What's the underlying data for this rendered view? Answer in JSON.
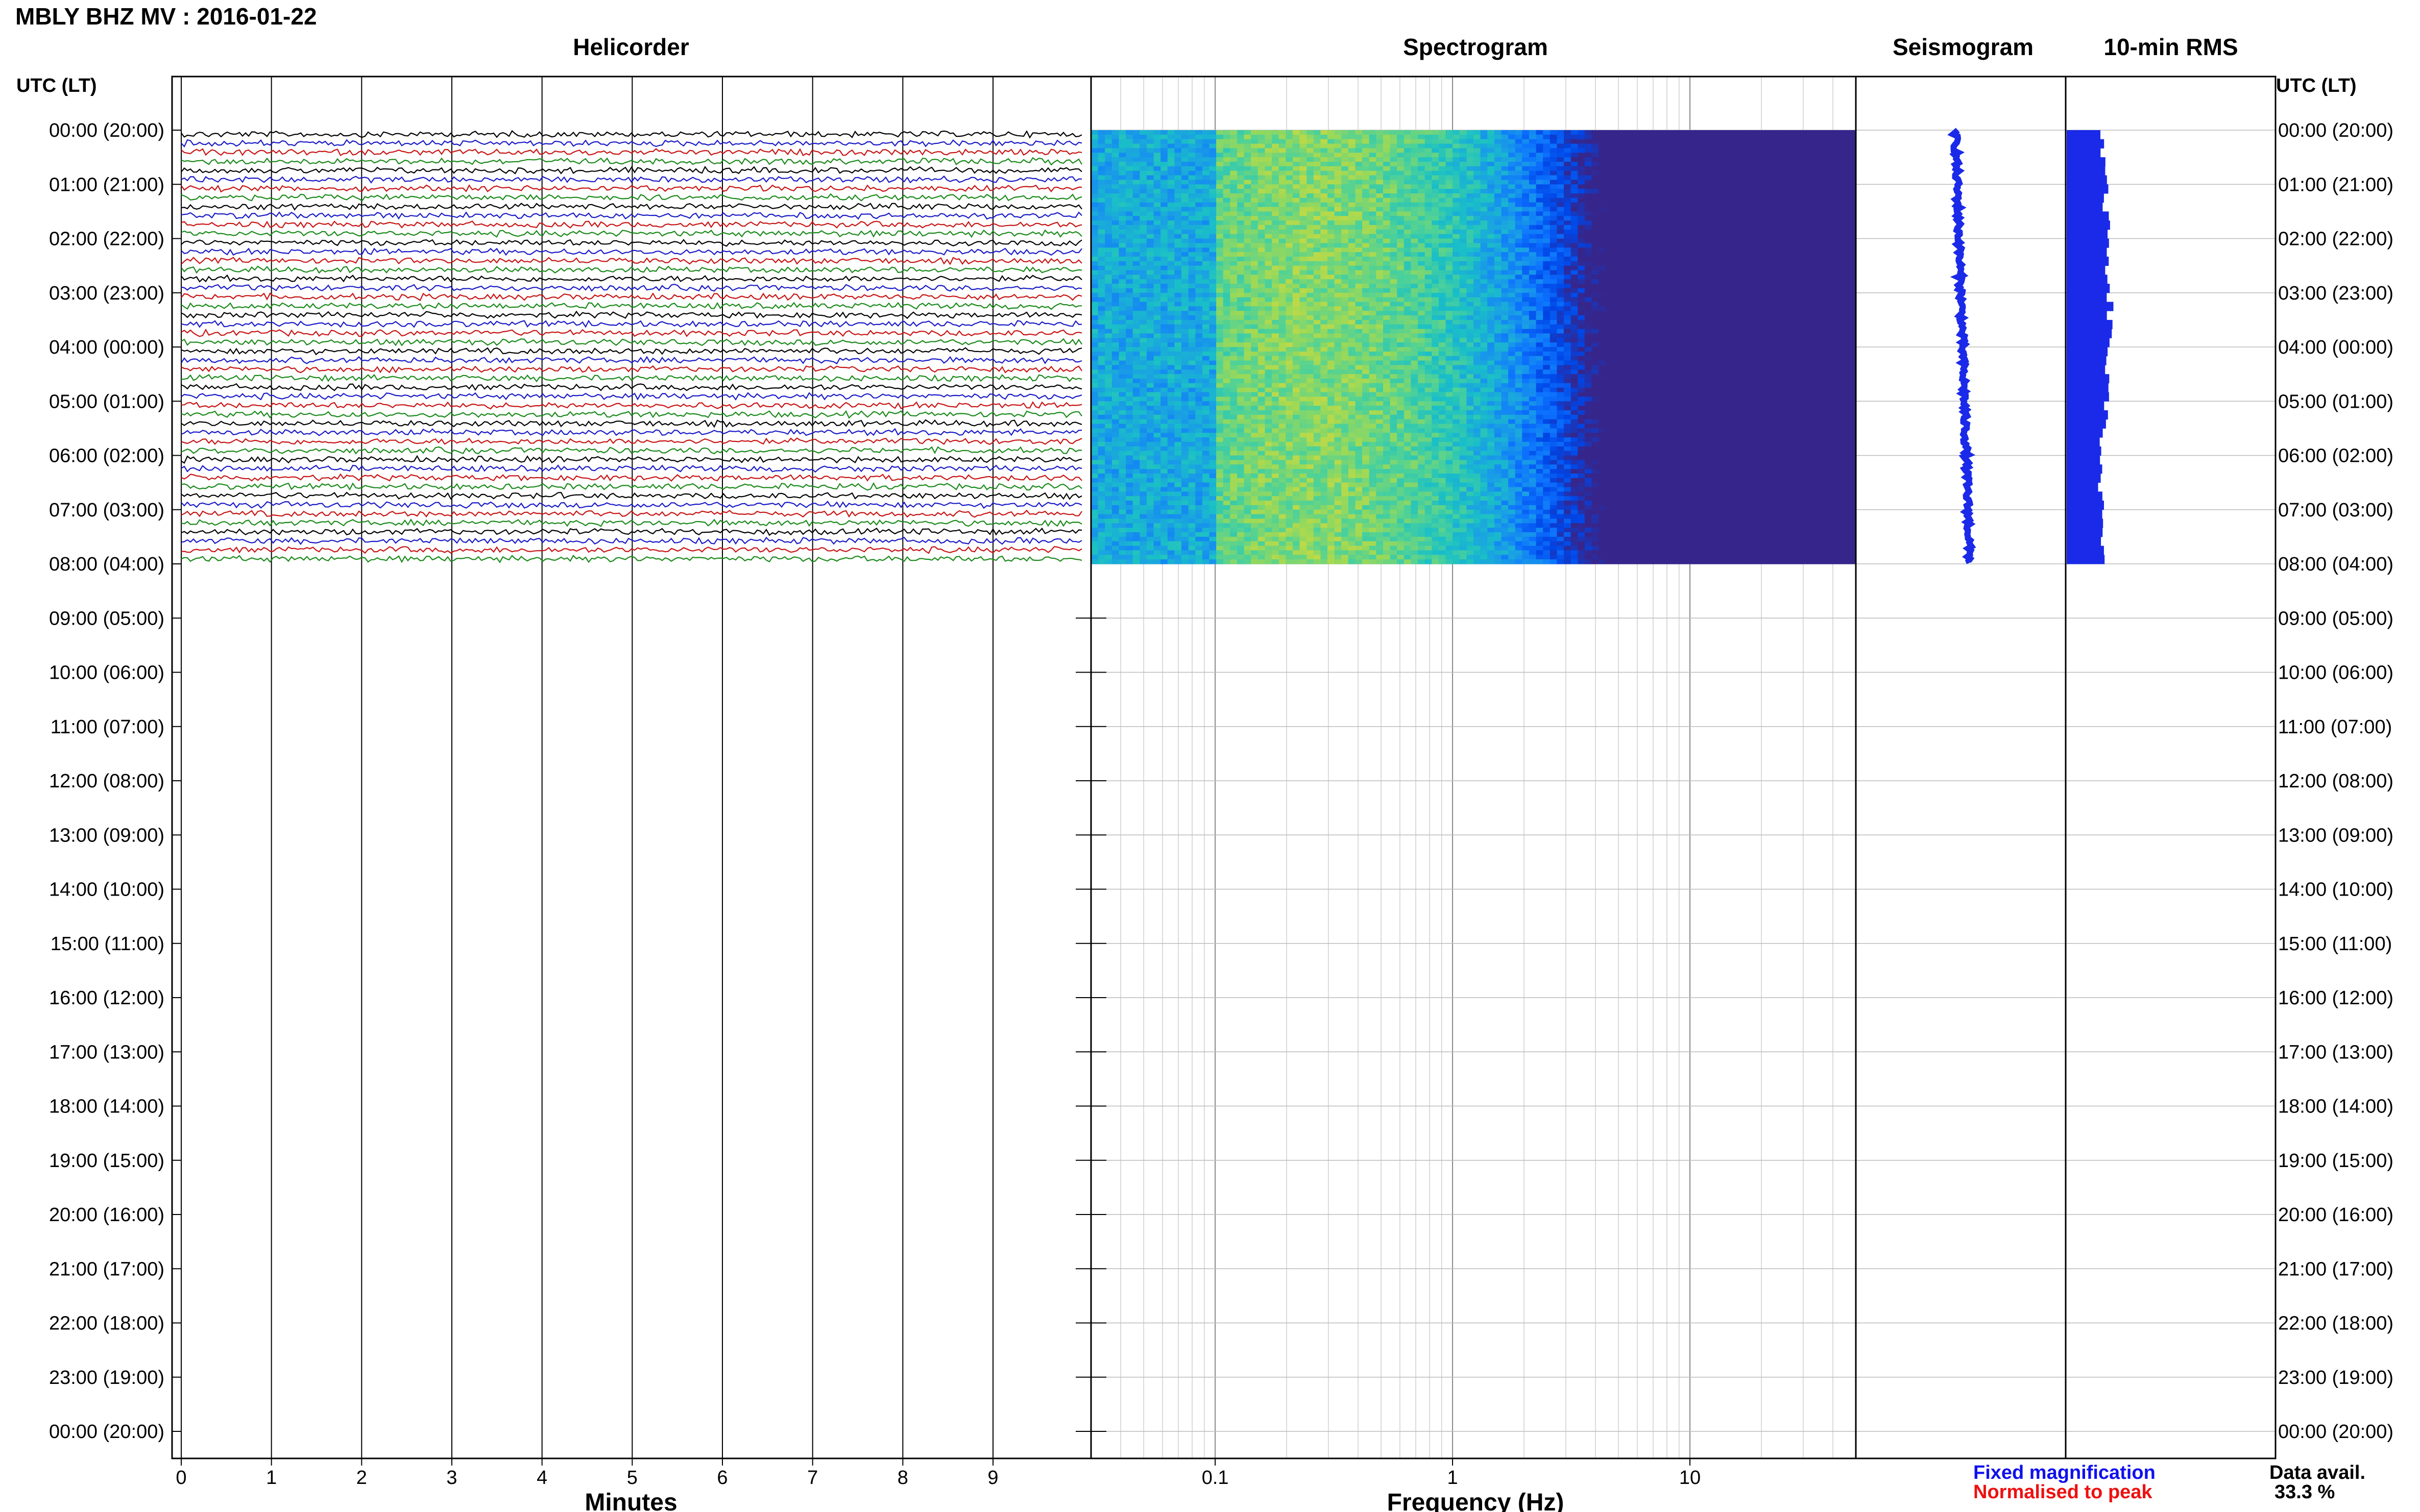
{
  "header": {
    "title": "MBLY BHZ MV : 2016-01-22"
  },
  "panels": {
    "helicorder": "Helicorder",
    "spectrogram": "Spectrogram",
    "seismogram": "Seismogram",
    "rms": "10-min RMS"
  },
  "y_axis": {
    "label_left": "UTC (LT)",
    "label_right": "UTC (LT)",
    "ticks": [
      "00:00 (20:00)",
      "01:00 (21:00)",
      "02:00 (22:00)",
      "03:00 (23:00)",
      "04:00 (00:00)",
      "05:00 (01:00)",
      "06:00 (02:00)",
      "07:00 (03:00)",
      "08:00 (04:00)",
      "09:00 (05:00)",
      "10:00 (06:00)",
      "11:00 (07:00)",
      "12:00 (08:00)",
      "13:00 (09:00)",
      "14:00 (10:00)",
      "15:00 (11:00)",
      "16:00 (12:00)",
      "17:00 (13:00)",
      "18:00 (14:00)",
      "19:00 (15:00)",
      "20:00 (16:00)",
      "21:00 (17:00)",
      "22:00 (18:00)",
      "23:00 (19:00)",
      "00:00 (20:00)"
    ]
  },
  "legend": {
    "fixed": "Fixed magnification",
    "normalised": "Normalised to peak",
    "fixed_color": "#1010ee",
    "normalised_color": "#ee1010"
  },
  "data_availability": {
    "label": "Data avail.",
    "value": "33.3 %"
  },
  "colors": {
    "trace_cycle": [
      "#000000",
      "#1a1ac8",
      "#c81414",
      "#1a8a1a"
    ],
    "seismogram_fill": "#1a2ae8",
    "rms_fill": "#1a2ae8"
  },
  "chart_data": [
    {
      "type": "line",
      "panel": "Helicorder",
      "xlabel": "Minutes",
      "x_ticks": [
        "0",
        "1",
        "2",
        "3",
        "4",
        "5",
        "6",
        "7",
        "8",
        "9"
      ],
      "xlim": [
        0,
        10
      ],
      "ylim_hours_utc": [
        0,
        24
      ],
      "data_until_hour_utc": 8,
      "line_interval_minutes": 10,
      "trace_color_cycle": [
        "black",
        "blue",
        "red",
        "green"
      ]
    },
    {
      "type": "heatmap",
      "panel": "Spectrogram",
      "xlabel": "Frequency (Hz)",
      "x_scale": "log",
      "x_ticks": [
        "0.1",
        "1",
        "10"
      ],
      "xlim_hz": [
        0.03,
        50
      ],
      "data_until_hour_utc": 8,
      "peak_energy_band_hz": [
        0.15,
        0.35
      ],
      "colormap": "parula"
    },
    {
      "type": "area",
      "panel": "Seismogram",
      "data_until_hour_utc": 8
    },
    {
      "type": "bar",
      "panel": "10-min RMS",
      "interval_minutes": 10,
      "data_until_hour_utc": 8
    }
  ]
}
